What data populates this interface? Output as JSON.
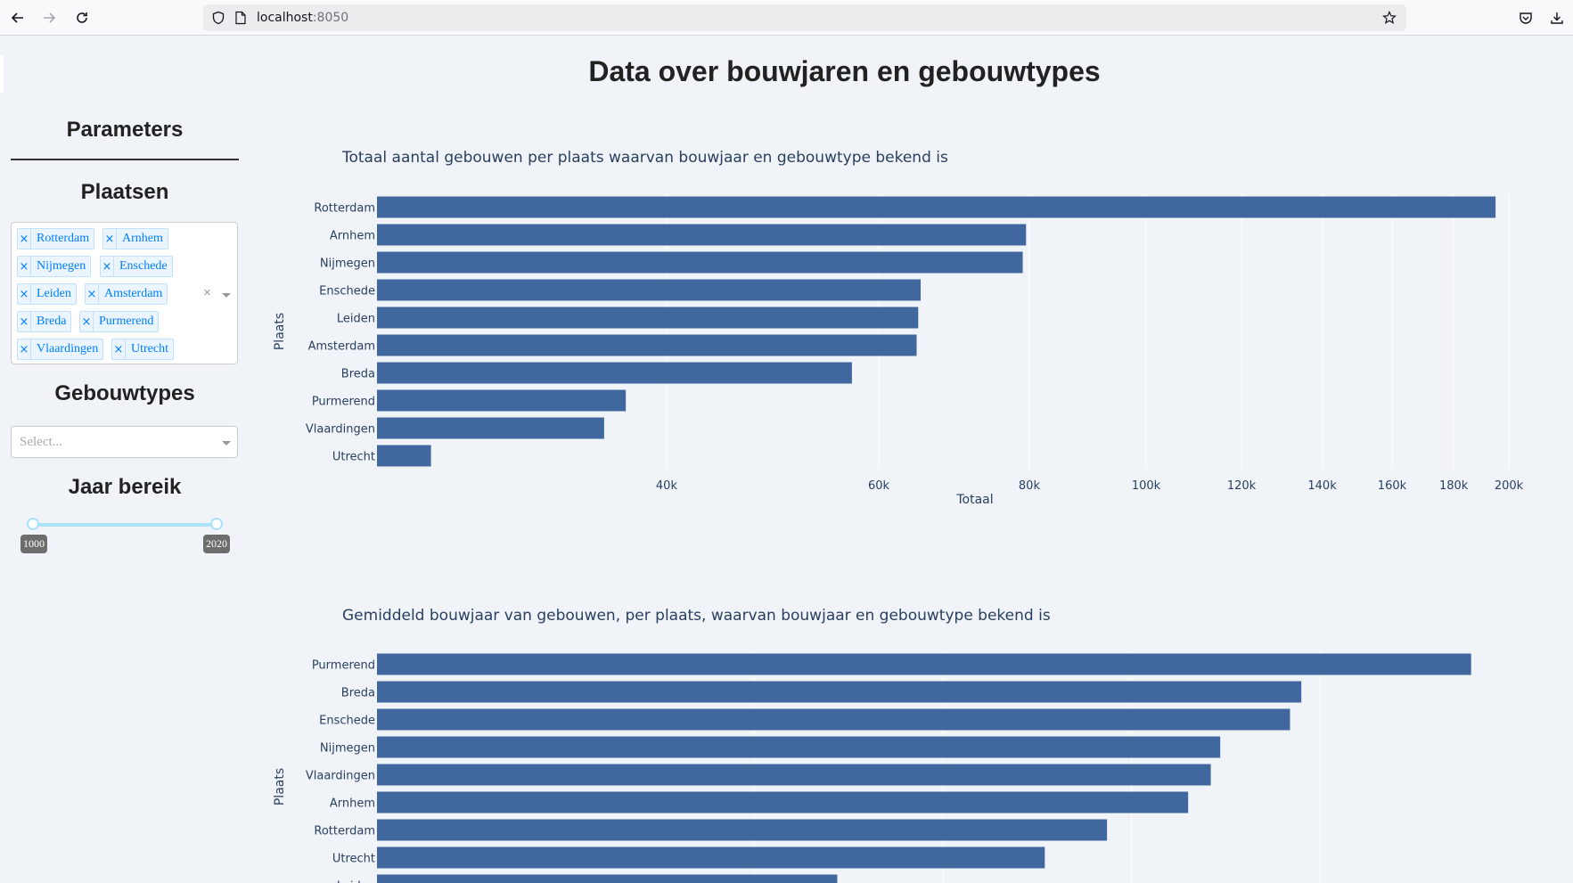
{
  "browser": {
    "url_host": "localhost",
    "url_port": ":8050"
  },
  "page": {
    "title": "Data over bouwjaren en gebouwtypes"
  },
  "sidebar": {
    "heading": "Parameters",
    "places_heading": "Plaatsen",
    "places_selected": [
      "Rotterdam",
      "Arnhem",
      "Nijmegen",
      "Enschede",
      "Leiden",
      "Amsterdam",
      "Breda",
      "Purmerend",
      "Vlaardingen",
      "Utrecht"
    ],
    "types_heading": "Gebouwtypes",
    "types_placeholder": "Select...",
    "year_heading": "Jaar bereik",
    "year_min": "1000",
    "year_max": "2020"
  },
  "colors": {
    "bar": "#41689e",
    "accent_link": "#007eff"
  },
  "chart_data": [
    {
      "type": "bar",
      "orientation": "horizontal",
      "title": "Totaal aantal gebouwen per plaats waarvan bouwjaar en gebouwtype bekend is",
      "xlabel": "Totaal",
      "ylabel": "Plaats",
      "x_scale": "log",
      "x_ticks": [
        "40k",
        "60k",
        "80k",
        "100k",
        "120k",
        "140k",
        "160k",
        "180k",
        "200k"
      ],
      "x_tick_values": [
        40000,
        60000,
        80000,
        100000,
        120000,
        140000,
        160000,
        180000,
        200000
      ],
      "xlim": [
        23000,
        200000
      ],
      "categories": [
        "Rotterdam",
        "Arnhem",
        "Nijmegen",
        "Enschede",
        "Leiden",
        "Amsterdam",
        "Breda",
        "Purmerend",
        "Vlaardingen",
        "Utrecht"
      ],
      "values": [
        195000,
        79500,
        79000,
        65000,
        64700,
        64500,
        57000,
        37000,
        35500,
        25500
      ]
    },
    {
      "type": "bar",
      "orientation": "horizontal",
      "title": "Gemiddeld bouwjaar van gebouwen, per plaats, waarvan bouwjaar en gebouwtype bekend is",
      "ylabel": "Plaats",
      "categories": [
        "Purmerend",
        "Breda",
        "Enschede",
        "Nijmegen",
        "Vlaardingen",
        "Arnhem",
        "Rotterdam",
        "Utrecht",
        "Leiden"
      ],
      "values": [
        1978,
        1969,
        1968.4,
        1964.7,
        1964.2,
        1963,
        1958.7,
        1955.4,
        1944.4
      ],
      "xlim": [
        1920,
        1980
      ]
    }
  ]
}
